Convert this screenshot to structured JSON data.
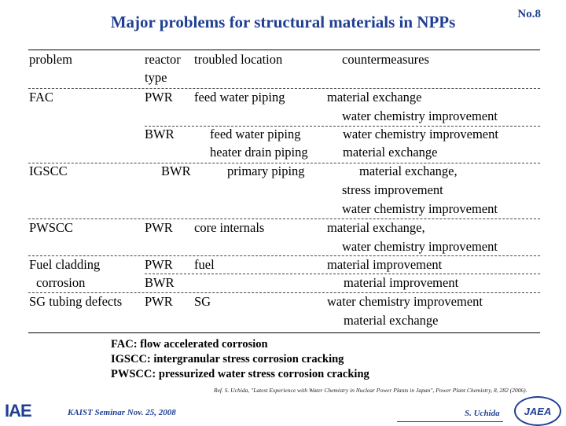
{
  "header": {
    "title": "Major problems for structural materials in NPPs",
    "slide_number": "No.8"
  },
  "table": {
    "headers": {
      "problem": "problem",
      "reactor_line1": "reactor",
      "reactor_line2": "type",
      "location": "troubled location",
      "countermeasures": "countermeasures"
    },
    "rows": [
      {
        "problem": "FAC",
        "reactor": "PWR",
        "location": "feed water piping",
        "countermeasures": [
          "material exchange",
          "water chemistry improvement"
        ]
      },
      {
        "problem": "",
        "reactor": "BWR",
        "location": [
          "feed water piping",
          "heater drain piping"
        ],
        "countermeasures": [
          "water chemistry improvement",
          "material exchange"
        ]
      },
      {
        "problem": "IGSCC",
        "reactor": "BWR",
        "location": "primary piping",
        "countermeasures": [
          "material exchange,",
          "stress improvement",
          "water chemistry improvement"
        ]
      },
      {
        "problem": "PWSCC",
        "reactor": "PWR",
        "location": "core internals",
        "countermeasures": [
          "material exchange,",
          "water chemistry improvement"
        ]
      },
      {
        "problem": "Fuel cladding",
        "reactor": "PWR",
        "location": "fuel",
        "countermeasures": [
          "material improvement"
        ]
      },
      {
        "problem": "corrosion",
        "reactor": "BWR",
        "location": "",
        "countermeasures": [
          "material improvement"
        ]
      },
      {
        "problem": "SG tubing defects",
        "reactor": "PWR",
        "location": "SG",
        "countermeasures": [
          "water chemistry improvement",
          "material exchange"
        ]
      }
    ]
  },
  "definitions": [
    "FAC: flow accelerated corrosion",
    "IGSCC: intergranular stress corrosion cracking",
    "PWSCC: pressurized water stress corrosion cracking"
  ],
  "reference": "Ref. S. Uchida, \"Latest Experience with Water Chemistry in Nuclear Power Plants in Japan\", Power Plant Chemistry, 8, 282 (2006).",
  "footer": {
    "seminar": "KAIST Seminar Nov. 25, 2008",
    "author": "S. Uchida",
    "logo_left": "IAE",
    "logo_right": "JAEA"
  },
  "colors": {
    "title": "#1f3f93"
  }
}
